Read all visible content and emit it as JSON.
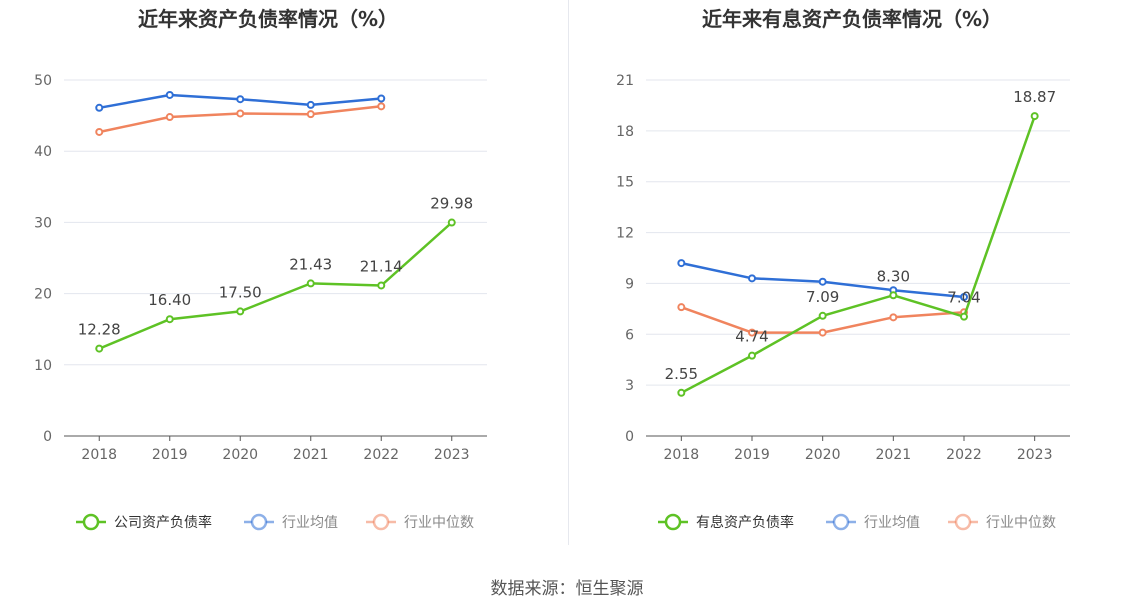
{
  "chart_data": [
    {
      "type": "line",
      "title": "近年来资产负债率情况（%）",
      "categories": [
        "2018",
        "2019",
        "2020",
        "2021",
        "2022",
        "2023"
      ],
      "ylim": [
        0,
        50
      ],
      "yticks": [
        0,
        10,
        20,
        30,
        40,
        50
      ],
      "grid": true,
      "legend_position": "bottom",
      "series": [
        {
          "name": "公司资产负债率",
          "color": "#5ec225",
          "values": [
            12.28,
            16.4,
            17.5,
            21.43,
            21.14,
            29.98
          ],
          "labels": [
            "12.28",
            "16.40",
            "17.50",
            "21.43",
            "21.14",
            "29.98"
          ]
        },
        {
          "name": "行业均值",
          "color": "#2f6fd6",
          "values": [
            46.1,
            47.9,
            47.3,
            46.5,
            47.4,
            null
          ]
        },
        {
          "name": "行业中位数",
          "color": "#f0845e",
          "values": [
            42.7,
            44.8,
            45.3,
            45.2,
            46.3,
            null
          ]
        }
      ]
    },
    {
      "type": "line",
      "title": "近年来有息资产负债率情况（%）",
      "categories": [
        "2018",
        "2019",
        "2020",
        "2021",
        "2022",
        "2023"
      ],
      "ylim": [
        0,
        21
      ],
      "yticks": [
        0,
        3,
        6,
        9,
        12,
        15,
        18,
        21
      ],
      "grid": true,
      "legend_position": "bottom",
      "series": [
        {
          "name": "有息资产负债率",
          "color": "#5ec225",
          "values": [
            2.55,
            4.74,
            7.09,
            8.3,
            7.04,
            18.87
          ],
          "labels": [
            "2.55",
            "4.74",
            "7.09",
            "8.30",
            "7.04",
            "18.87"
          ]
        },
        {
          "name": "行业均值",
          "color": "#2f6fd6",
          "values": [
            10.2,
            9.3,
            9.1,
            8.6,
            8.2,
            null
          ]
        },
        {
          "name": "行业中位数",
          "color": "#f0845e",
          "values": [
            7.6,
            6.1,
            6.1,
            7.0,
            7.3,
            null
          ]
        }
      ]
    }
  ],
  "footer": {
    "source": "数据来源：恒生聚源"
  }
}
